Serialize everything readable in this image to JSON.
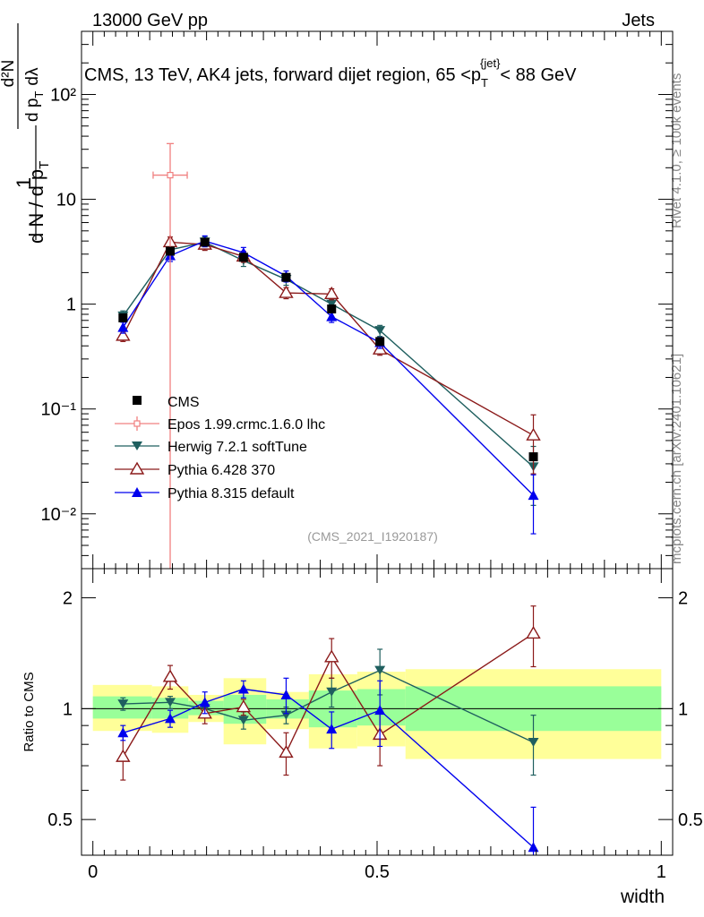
{
  "header": {
    "energy_label": "13000 GeV pp",
    "category_label": "Jets",
    "rivet_label": "Rivet 4.1.0, ≥ 100k events",
    "mcplots_label": "mcplots.cern.ch [arXiv:2401.10621]",
    "analysis_label": "(CMS_2021_I1920187)"
  },
  "colors": {
    "cms": "#000000",
    "epos": "#f08080",
    "herwig": "#1f5f5f",
    "pythia6": "#8b1a1a",
    "pythia8": "#0000ee",
    "band_yellow": "#ffff99",
    "band_green": "#99ff99"
  },
  "chart_data": [
    {
      "type": "scatter",
      "title": "CMS, 13 TeV, AK4 jets, forward dijet region, 65 <p_T^{jet}< 88 GeV",
      "title_parts": {
        "prefix": "CMS, 13 TeV, AK4 jets, forward dijet region, 65 <p",
        "sub": "T",
        "sup": "{jet}",
        "suffix": "< 88 GeV"
      },
      "ylabel": "1/(dN/dp_T) dN²/(dp_T dλ)",
      "ylabel_parts": {
        "n1": "1",
        "den": "d N / d p",
        "sub1": "T",
        "num2": "d²N",
        "den2": "d p",
        "sub2": "T",
        "lam": "dλ"
      },
      "yscale": "log",
      "ylim": [
        0.003,
        400
      ],
      "xlim": [
        -0.02,
        1.02
      ],
      "y_tick_labels": [
        "10⁻²",
        "10⁻¹",
        "1",
        "10",
        "10²"
      ],
      "y_tick_values": [
        0.01,
        0.1,
        1,
        10,
        100
      ],
      "legend": [
        "CMS",
        "Epos 1.99.crmc.1.6.0 lhc",
        "Herwig 7.2.1 softTune",
        "Pythia 6.428 370",
        "Pythia 8.315 default"
      ],
      "series": [
        {
          "name": "CMS",
          "x": [
            0.053,
            0.136,
            0.197,
            0.265,
            0.34,
            0.42,
            0.505,
            0.775
          ],
          "y": [
            0.74,
            3.2,
            3.9,
            2.8,
            1.8,
            0.9,
            0.44,
            0.035
          ]
        },
        {
          "name": "Epos 1.99.crmc.1.6.0 lhc",
          "x": [
            0.136
          ],
          "y": [
            17.0
          ],
          "xerr": [
            0.03
          ],
          "yerr_up": [
            17.0
          ],
          "yerr_down": [
            17.0
          ]
        },
        {
          "name": "Herwig 7.2.1 softTune",
          "x": [
            0.053,
            0.136,
            0.197,
            0.265,
            0.34,
            0.42,
            0.505,
            0.775
          ],
          "y": [
            0.77,
            3.3,
            3.9,
            2.6,
            1.72,
            1.0,
            0.56,
            0.028
          ]
        },
        {
          "name": "Pythia 6.428 370",
          "x": [
            0.053,
            0.136,
            0.197,
            0.265,
            0.34,
            0.42,
            0.505,
            0.775
          ],
          "y": [
            0.5,
            3.9,
            3.7,
            2.85,
            1.28,
            1.25,
            0.37,
            0.056
          ]
        },
        {
          "name": "Pythia 8.315 default",
          "x": [
            0.053,
            0.136,
            0.197,
            0.265,
            0.34,
            0.42,
            0.505,
            0.775
          ],
          "y": [
            0.6,
            2.9,
            4.0,
            3.1,
            1.85,
            0.76,
            0.43,
            0.015
          ]
        }
      ]
    },
    {
      "type": "scatter",
      "ylabel": "Ratio to CMS",
      "xlabel": "width",
      "yscale": "log",
      "ylim": [
        0.4,
        2.4
      ],
      "xlim": [
        -0.02,
        1.02
      ],
      "x_tick_labels": [
        "0",
        "0.5",
        "1"
      ],
      "x_tick_values": [
        0,
        0.5,
        1
      ],
      "y_tick_labels": [
        "0.5",
        "1",
        "2"
      ],
      "y_tick_values": [
        0.5,
        1,
        2
      ],
      "bands": [
        {
          "x0": 0.0,
          "x1": 0.104,
          "yellow": [
            0.87,
            1.16
          ],
          "green": [
            0.94,
            1.08
          ]
        },
        {
          "x0": 0.104,
          "x1": 0.168,
          "yellow": [
            0.86,
            1.15
          ],
          "green": [
            0.94,
            1.07
          ]
        },
        {
          "x0": 0.168,
          "x1": 0.23,
          "yellow": [
            0.92,
            1.09
          ],
          "green": [
            0.96,
            1.05
          ]
        },
        {
          "x0": 0.23,
          "x1": 0.305,
          "yellow": [
            0.8,
            1.21
          ],
          "green": [
            0.91,
            1.09
          ]
        },
        {
          "x0": 0.305,
          "x1": 0.38,
          "yellow": [
            0.88,
            1.11
          ],
          "green": [
            0.94,
            1.06
          ]
        },
        {
          "x0": 0.38,
          "x1": 0.465,
          "yellow": [
            0.78,
            1.24
          ],
          "green": [
            0.89,
            1.12
          ]
        },
        {
          "x0": 0.465,
          "x1": 0.55,
          "yellow": [
            0.79,
            1.26
          ],
          "green": [
            0.9,
            1.13
          ]
        },
        {
          "x0": 0.55,
          "x1": 1.0,
          "yellow": [
            0.73,
            1.28
          ],
          "green": [
            0.87,
            1.15
          ]
        }
      ],
      "series": [
        {
          "name": "Herwig 7.2.1 softTune",
          "x": [
            0.053,
            0.136,
            0.197,
            0.265,
            0.34,
            0.42,
            0.505,
            0.775
          ],
          "y": [
            1.03,
            1.04,
            1.0,
            0.93,
            0.96,
            1.11,
            1.27,
            0.81
          ],
          "err": [
            0.04,
            0.04,
            0.04,
            0.05,
            0.05,
            0.1,
            0.18,
            0.15
          ]
        },
        {
          "name": "Pythia 6.428 370",
          "x": [
            0.053,
            0.136,
            0.197,
            0.265,
            0.34,
            0.42,
            0.505,
            0.775
          ],
          "y": [
            0.74,
            1.22,
            0.97,
            1.01,
            0.76,
            1.38,
            0.85,
            1.6
          ],
          "err": [
            0.1,
            0.09,
            0.06,
            0.05,
            0.1,
            0.17,
            0.15,
            0.3
          ]
        },
        {
          "name": "Pythia 8.315 default",
          "x": [
            0.053,
            0.136,
            0.197,
            0.265,
            0.34,
            0.42,
            0.505,
            0.775
          ],
          "y": [
            0.86,
            0.94,
            1.04,
            1.13,
            1.09,
            0.88,
            0.99,
            0.42
          ],
          "err": [
            0.04,
            0.05,
            0.07,
            0.06,
            0.12,
            0.1,
            0.2,
            0.12
          ]
        }
      ]
    }
  ]
}
